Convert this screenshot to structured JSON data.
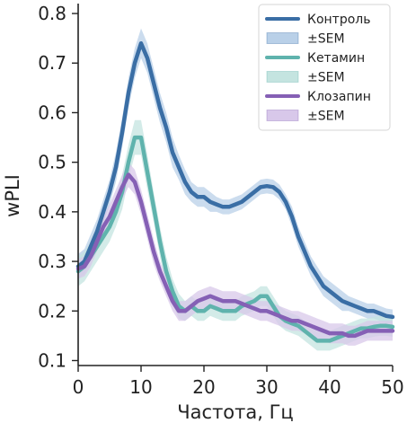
{
  "chart_data": {
    "type": "line",
    "xlabel": "Частота, Гц",
    "ylabel": "wPLI",
    "xlim": [
      0,
      50
    ],
    "ylim": [
      0.09,
      0.82
    ],
    "x_ticks": [
      0,
      10,
      20,
      30,
      40,
      50
    ],
    "y_ticks": [
      0.1,
      0.2,
      0.3,
      0.4,
      0.5,
      0.6,
      0.7,
      0.8
    ],
    "grid": false,
    "legend_position": "top-right",
    "series": [
      {
        "name": "Контроль",
        "band_label": "±SEM",
        "color": "#3a6ea5",
        "band_color": "#b9d0e8",
        "x": [
          0,
          1,
          2,
          3,
          4,
          5,
          6,
          7,
          8,
          9,
          10,
          11,
          12,
          13,
          14,
          15,
          16,
          17,
          18,
          19,
          20,
          21,
          22,
          23,
          24,
          25,
          26,
          27,
          28,
          29,
          30,
          31,
          32,
          33,
          34,
          35,
          36,
          37,
          38,
          39,
          40,
          41,
          42,
          43,
          44,
          45,
          46,
          47,
          48,
          49,
          50
        ],
        "y": [
          0.29,
          0.3,
          0.33,
          0.36,
          0.4,
          0.44,
          0.49,
          0.56,
          0.64,
          0.7,
          0.74,
          0.71,
          0.66,
          0.61,
          0.57,
          0.52,
          0.49,
          0.46,
          0.44,
          0.43,
          0.43,
          0.42,
          0.415,
          0.41,
          0.41,
          0.415,
          0.42,
          0.43,
          0.44,
          0.45,
          0.452,
          0.45,
          0.44,
          0.42,
          0.39,
          0.35,
          0.32,
          0.29,
          0.27,
          0.25,
          0.24,
          0.23,
          0.22,
          0.215,
          0.21,
          0.205,
          0.2,
          0.2,
          0.195,
          0.19,
          0.188
        ],
        "sem": [
          0.025,
          0.025,
          0.025,
          0.025,
          0.025,
          0.025,
          0.03,
          0.03,
          0.03,
          0.03,
          0.03,
          0.03,
          0.03,
          0.03,
          0.03,
          0.03,
          0.025,
          0.025,
          0.02,
          0.02,
          0.02,
          0.02,
          0.015,
          0.015,
          0.015,
          0.015,
          0.015,
          0.015,
          0.015,
          0.015,
          0.015,
          0.015,
          0.015,
          0.015,
          0.02,
          0.02,
          0.02,
          0.02,
          0.02,
          0.02,
          0.02,
          0.02,
          0.02,
          0.015,
          0.015,
          0.015,
          0.015,
          0.015,
          0.015,
          0.015,
          0.015
        ]
      },
      {
        "name": "Кетамин",
        "band_label": "±SEM",
        "color": "#5fb3ad",
        "band_color": "#c4e4e0",
        "x": [
          0,
          1,
          2,
          3,
          4,
          5,
          6,
          7,
          8,
          9,
          10,
          11,
          12,
          13,
          14,
          15,
          16,
          17,
          18,
          19,
          20,
          21,
          22,
          23,
          24,
          25,
          26,
          27,
          28,
          29,
          30,
          31,
          32,
          33,
          34,
          35,
          36,
          37,
          38,
          39,
          40,
          41,
          42,
          43,
          44,
          45,
          46,
          47,
          48,
          49,
          50
        ],
        "y": [
          0.28,
          0.29,
          0.31,
          0.33,
          0.35,
          0.37,
          0.4,
          0.44,
          0.5,
          0.55,
          0.55,
          0.48,
          0.41,
          0.34,
          0.28,
          0.24,
          0.21,
          0.2,
          0.21,
          0.2,
          0.2,
          0.21,
          0.205,
          0.2,
          0.2,
          0.2,
          0.21,
          0.215,
          0.22,
          0.23,
          0.23,
          0.21,
          0.19,
          0.18,
          0.175,
          0.17,
          0.16,
          0.15,
          0.14,
          0.14,
          0.14,
          0.145,
          0.15,
          0.155,
          0.16,
          0.165,
          0.165,
          0.168,
          0.17,
          0.17,
          0.168
        ],
        "sem": [
          0.03,
          0.03,
          0.03,
          0.03,
          0.03,
          0.03,
          0.03,
          0.035,
          0.035,
          0.035,
          0.035,
          0.035,
          0.03,
          0.03,
          0.03,
          0.025,
          0.025,
          0.02,
          0.02,
          0.02,
          0.02,
          0.02,
          0.02,
          0.02,
          0.02,
          0.02,
          0.02,
          0.02,
          0.02,
          0.02,
          0.02,
          0.02,
          0.02,
          0.02,
          0.02,
          0.02,
          0.02,
          0.02,
          0.02,
          0.02,
          0.02,
          0.02,
          0.02,
          0.02,
          0.02,
          0.02,
          0.02,
          0.02,
          0.02,
          0.02,
          0.02
        ]
      },
      {
        "name": "Клозапин",
        "band_label": "±SEM",
        "color": "#8560b5",
        "band_color": "#d8c8ea",
        "x": [
          0,
          1,
          2,
          3,
          4,
          5,
          6,
          7,
          8,
          9,
          10,
          11,
          12,
          13,
          14,
          15,
          16,
          17,
          18,
          19,
          20,
          21,
          22,
          23,
          24,
          25,
          26,
          27,
          28,
          29,
          30,
          31,
          32,
          33,
          34,
          35,
          36,
          37,
          38,
          39,
          40,
          41,
          42,
          43,
          44,
          45,
          46,
          47,
          48,
          49,
          50
        ],
        "y": [
          0.285,
          0.29,
          0.31,
          0.34,
          0.37,
          0.39,
          0.42,
          0.45,
          0.475,
          0.46,
          0.42,
          0.37,
          0.32,
          0.28,
          0.25,
          0.22,
          0.2,
          0.2,
          0.21,
          0.22,
          0.225,
          0.23,
          0.225,
          0.22,
          0.22,
          0.22,
          0.215,
          0.21,
          0.205,
          0.2,
          0.2,
          0.195,
          0.19,
          0.185,
          0.18,
          0.18,
          0.175,
          0.17,
          0.165,
          0.16,
          0.155,
          0.155,
          0.155,
          0.15,
          0.15,
          0.155,
          0.16,
          0.16,
          0.16,
          0.16,
          0.16
        ],
        "sem": [
          0.02,
          0.02,
          0.02,
          0.02,
          0.02,
          0.025,
          0.025,
          0.025,
          0.025,
          0.025,
          0.025,
          0.025,
          0.025,
          0.02,
          0.02,
          0.02,
          0.02,
          0.02,
          0.02,
          0.02,
          0.02,
          0.02,
          0.02,
          0.02,
          0.02,
          0.02,
          0.02,
          0.02,
          0.02,
          0.02,
          0.02,
          0.02,
          0.02,
          0.02,
          0.02,
          0.02,
          0.02,
          0.02,
          0.02,
          0.02,
          0.02,
          0.02,
          0.02,
          0.02,
          0.02,
          0.02,
          0.02,
          0.02,
          0.02,
          0.02,
          0.02
        ]
      }
    ]
  }
}
